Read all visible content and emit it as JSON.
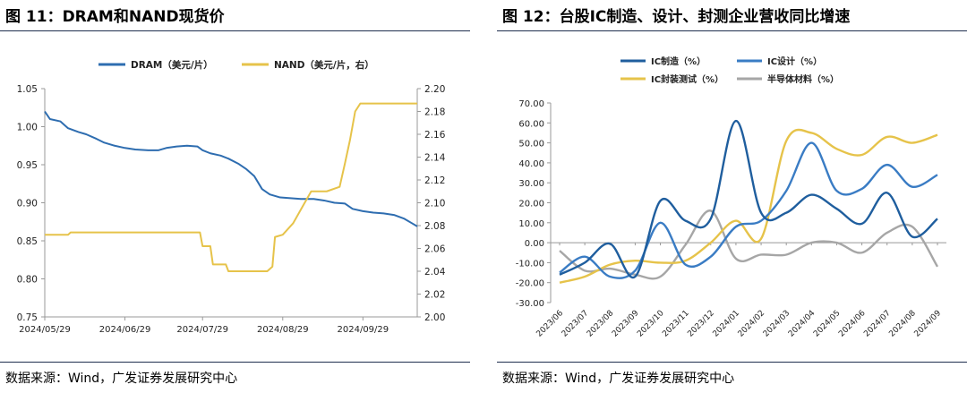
{
  "panels": {
    "left": {
      "title": "图 11：DRAM和NAND现货价",
      "source": "数据来源：Wind，广发证券发展研究中心"
    },
    "right": {
      "title": "图 12：台股IC制造、设计、封测企业营收同比增速",
      "source": "数据来源：Wind，广发证券发展研究中心"
    }
  },
  "chart_data": [
    {
      "type": "line",
      "x_ticks": [
        "2024/05/29",
        "2024/06/29",
        "2024/07/29",
        "2024/08/29",
        "2024/09/29"
      ],
      "x_range": [
        "2024/05/29",
        "2024/10/20"
      ],
      "ylim_left": [
        0.75,
        1.05
      ],
      "yticks_left": [
        "1.05",
        "1.00",
        "0.95",
        "0.90",
        "0.85",
        "0.80",
        "0.75"
      ],
      "ylim_right": [
        2.0,
        2.2
      ],
      "yticks_right": [
        "2.20",
        "2.18",
        "2.16",
        "2.14",
        "2.12",
        "2.10",
        "2.08",
        "2.06",
        "2.04",
        "2.02",
        "2.00"
      ],
      "grid": false,
      "legend_position": "top",
      "series": [
        {
          "name": "DRAM（美元/片）",
          "axis": "left",
          "color": "#2e6db0",
          "points": [
            [
              "2024/05/29",
              1.02
            ],
            [
              "2024/05/31",
              1.01
            ],
            [
              "2024/06/04",
              1.007
            ],
            [
              "2024/06/07",
              0.998
            ],
            [
              "2024/06/11",
              0.993
            ],
            [
              "2024/06/14",
              0.99
            ],
            [
              "2024/06/18",
              0.984
            ],
            [
              "2024/06/21",
              0.979
            ],
            [
              "2024/06/25",
              0.975
            ],
            [
              "2024/06/29",
              0.972
            ],
            [
              "2024/07/03",
              0.97
            ],
            [
              "2024/07/08",
              0.969
            ],
            [
              "2024/07/12",
              0.969
            ],
            [
              "2024/07/15",
              0.972
            ],
            [
              "2024/07/19",
              0.974
            ],
            [
              "2024/07/23",
              0.975
            ],
            [
              "2024/07/27",
              0.974
            ],
            [
              "2024/07/29",
              0.969
            ],
            [
              "2024/08/01",
              0.965
            ],
            [
              "2024/08/05",
              0.962
            ],
            [
              "2024/08/08",
              0.958
            ],
            [
              "2024/08/12",
              0.951
            ],
            [
              "2024/08/15",
              0.944
            ],
            [
              "2024/08/18",
              0.935
            ],
            [
              "2024/08/21",
              0.918
            ],
            [
              "2024/08/24",
              0.911
            ],
            [
              "2024/08/28",
              0.907
            ],
            [
              "2024/09/01",
              0.906
            ],
            [
              "2024/09/05",
              0.905
            ],
            [
              "2024/09/10",
              0.905
            ],
            [
              "2024/09/14",
              0.903
            ],
            [
              "2024/09/18",
              0.9
            ],
            [
              "2024/09/22",
              0.899
            ],
            [
              "2024/09/25",
              0.892
            ],
            [
              "2024/09/29",
              0.889
            ],
            [
              "2024/10/03",
              0.887
            ],
            [
              "2024/10/07",
              0.886
            ],
            [
              "2024/10/11",
              0.884
            ],
            [
              "2024/10/15",
              0.879
            ],
            [
              "2024/10/18",
              0.873
            ],
            [
              "2024/10/20",
              0.869
            ]
          ]
        },
        {
          "name": "NAND（美元/片，右）",
          "axis": "right",
          "color": "#e6c34a",
          "points": [
            [
              "2024/05/29",
              2.072
            ],
            [
              "2024/06/07",
              2.072
            ],
            [
              "2024/06/08",
              2.074
            ],
            [
              "2024/06/15",
              2.074
            ],
            [
              "2024/07/28",
              2.074
            ],
            [
              "2024/07/29",
              2.062
            ],
            [
              "2024/08/01",
              2.062
            ],
            [
              "2024/08/02",
              2.046
            ],
            [
              "2024/08/07",
              2.046
            ],
            [
              "2024/08/08",
              2.04
            ],
            [
              "2024/08/23",
              2.04
            ],
            [
              "2024/08/25",
              2.044
            ],
            [
              "2024/08/26",
              2.07
            ],
            [
              "2024/08/29",
              2.072
            ],
            [
              "2024/09/02",
              2.082
            ],
            [
              "2024/09/06",
              2.098
            ],
            [
              "2024/09/09",
              2.11
            ],
            [
              "2024/09/15",
              2.11
            ],
            [
              "2024/09/20",
              2.114
            ],
            [
              "2024/09/22",
              2.134
            ],
            [
              "2024/09/24",
              2.155
            ],
            [
              "2024/09/26",
              2.18
            ],
            [
              "2024/09/28",
              2.187
            ],
            [
              "2024/10/20",
              2.187
            ]
          ]
        }
      ]
    },
    {
      "type": "line",
      "categories": [
        "2023/06",
        "2023/07",
        "2023/08",
        "2023/09",
        "2023/10",
        "2023/11",
        "2023/12",
        "2024/01",
        "2024/02",
        "2024/03",
        "2024/04",
        "2024/05",
        "2024/06",
        "2024/07",
        "2024/08",
        "2024/09"
      ],
      "ylim": [
        -30,
        70
      ],
      "yticks": [
        "70.00",
        "60.00",
        "50.00",
        "40.00",
        "30.00",
        "20.00",
        "10.00",
        "0.00",
        "-10.00",
        "-20.00",
        "-30.00"
      ],
      "grid": false,
      "legend_position": "top",
      "series": [
        {
          "name": "IC制造（%）",
          "color": "#1f5e9e",
          "values": [
            -16,
            -10,
            -0.5,
            -17,
            21,
            11,
            12,
            61,
            15,
            15,
            24,
            17,
            9.5,
            25,
            3,
            12
          ]
        },
        {
          "name": "IC设计（%）",
          "color": "#3a7cc4",
          "values": [
            -15,
            -7,
            -17,
            -14,
            10,
            -11,
            -7,
            8,
            11,
            26,
            50,
            26,
            27,
            39,
            28,
            34
          ]
        },
        {
          "name": "IC封装测试（%）",
          "color": "#e6c34a",
          "values": [
            -20,
            -17,
            -11,
            -9,
            -10,
            -9,
            0,
            11,
            2,
            51,
            55,
            47,
            44,
            53,
            50,
            54
          ]
        },
        {
          "name": "半导体材料（%）",
          "color": "#a6a6a6",
          "values": [
            -4,
            -14,
            -13,
            -16,
            -17,
            -1,
            16,
            -8,
            -6,
            -6,
            0,
            0,
            -5,
            5,
            8,
            -12
          ]
        }
      ]
    }
  ]
}
